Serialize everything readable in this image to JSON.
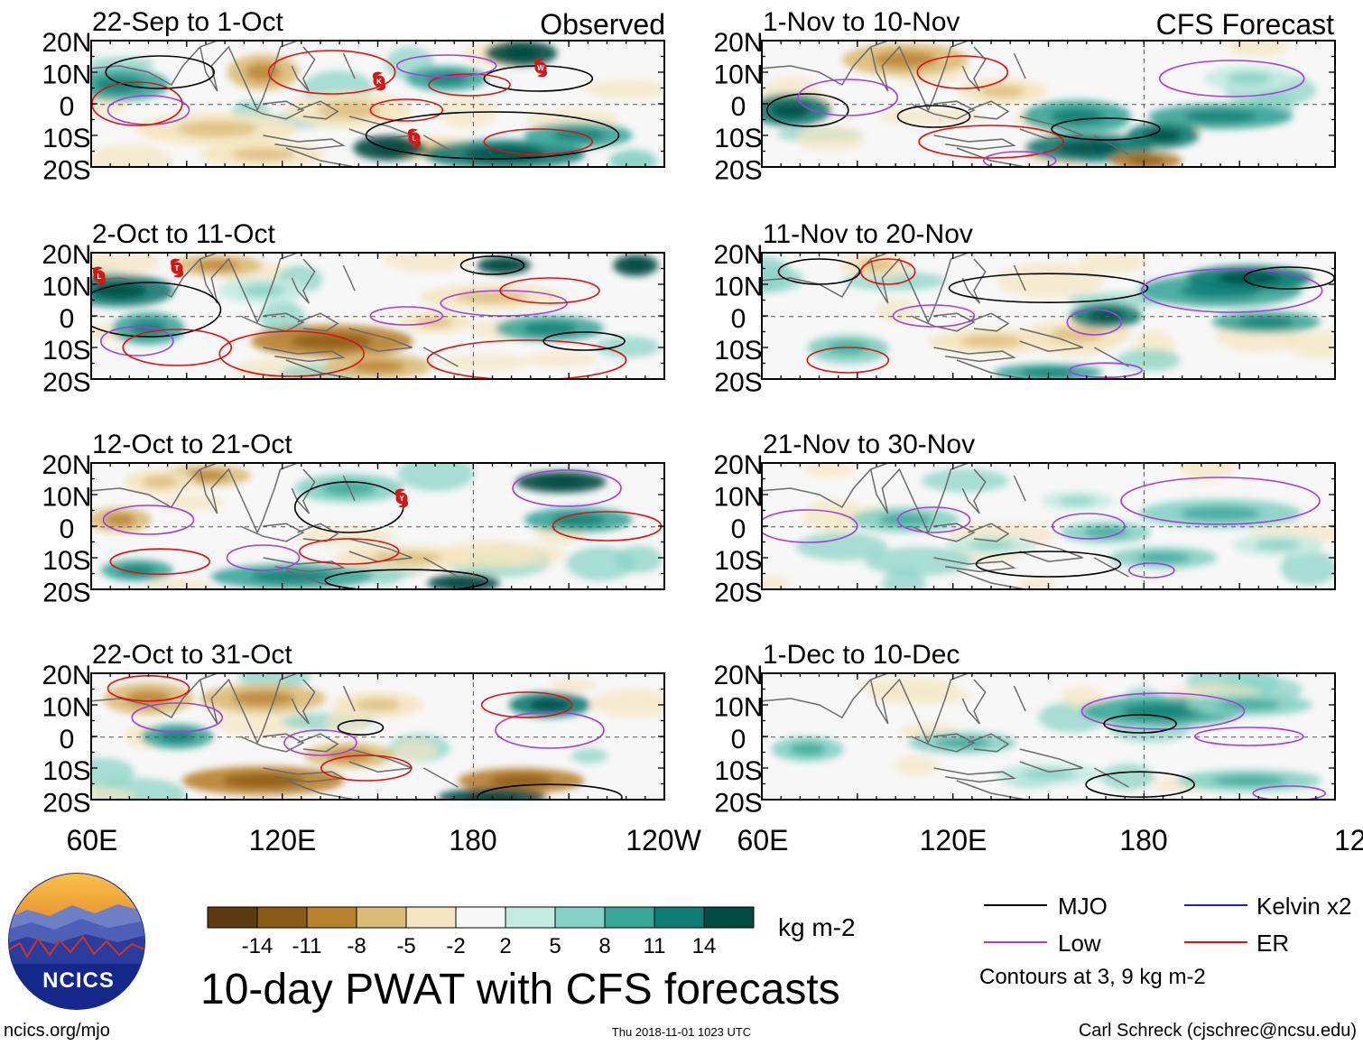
{
  "header": {
    "observed_label": "Observed",
    "forecast_label": "CFS Forecast"
  },
  "panels_left": [
    {
      "date_range": "22-Sep to 1-Oct"
    },
    {
      "date_range": "2-Oct to 11-Oct"
    },
    {
      "date_range": "12-Oct to 21-Oct"
    },
    {
      "date_range": "22-Oct to 31-Oct"
    }
  ],
  "panels_right": [
    {
      "date_range": "1-Nov to 10-Nov"
    },
    {
      "date_range": "11-Nov to 20-Nov"
    },
    {
      "date_range": "21-Nov to 30-Nov"
    },
    {
      "date_range": "1-Dec to 10-Dec"
    }
  ],
  "lat_labels": [
    "20N",
    "10N",
    "0",
    "10S",
    "20S"
  ],
  "lon_labels": [
    "60E",
    "120E",
    "180",
    "120W"
  ],
  "colorbar": {
    "colors": [
      "#5c3a12",
      "#8b5a14",
      "#b8812e",
      "#dcbc79",
      "#f5e5c0",
      "#f7f7f7",
      "#c4ebe2",
      "#85d1c3",
      "#3aa69a",
      "#0e7c72",
      "#034a42"
    ],
    "tick_labels": [
      "-14",
      "-11",
      "-8",
      "-5",
      "-2",
      "2",
      "5",
      "8",
      "11",
      "14"
    ],
    "unit": "kg m-2"
  },
  "legend": {
    "items": [
      {
        "label": "MJO",
        "color": "#000000"
      },
      {
        "label": "Kelvin x2",
        "color": "#2020c0"
      },
      {
        "label": "Low",
        "color": "#a040e0"
      },
      {
        "label": "ER",
        "color": "#e01010"
      }
    ],
    "note": "Contours at 3, 9 kg m-2"
  },
  "title": "10-day PWAT with CFS forecasts",
  "logo_text": "NCICS",
  "footer": {
    "url": "ncics.org/mjo",
    "timestamp": "Thu 2018-11-01 1023 UTC",
    "credit": "Carl Schreck (cjschrec@ncsu.edu)"
  },
  "storm_markers": [
    {
      "panel": 0,
      "letter": "K"
    },
    {
      "panel": 0,
      "letter": "W"
    },
    {
      "panel": 0,
      "letter": "L"
    },
    {
      "panel": 1,
      "letter": "L"
    },
    {
      "panel": 1,
      "letter": "T"
    },
    {
      "panel": 2,
      "letter": "Y"
    }
  ]
}
